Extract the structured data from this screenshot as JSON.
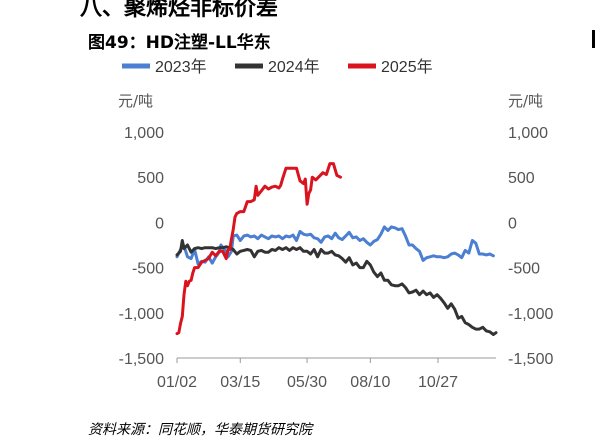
{
  "heading": "八、聚烯烃非标价差",
  "figure_title": "图49：HD注塑-LL华东",
  "source": "资料来源：同花顺，华泰期货研究院",
  "chart_data": {
    "type": "line",
    "title": "图49：HD注塑-LL华东",
    "left_unit": "元/吨",
    "right_unit": "元/吨",
    "ylim": [
      -1500,
      1000
    ],
    "yticks": [
      1000,
      500,
      0,
      -500,
      -1000,
      -1500
    ],
    "ytick_labels": [
      "1,000",
      "500",
      "0",
      "-500",
      "-1,000",
      "-1,500"
    ],
    "xticks": [
      "01/02",
      "03/15",
      "05/30",
      "08/10",
      "10/27"
    ],
    "xtick_positions": [
      2,
      74,
      150,
      222,
      299
    ],
    "xlim": [
      2,
      365
    ],
    "grid": false,
    "legend_position": "top",
    "series": [
      {
        "name": "2023年",
        "color": "#4A7FD1",
        "x": [
          2,
          6,
          10,
          14,
          18,
          22,
          26,
          30,
          34,
          38,
          42,
          46,
          50,
          52,
          56,
          60,
          64,
          66,
          70,
          74,
          78,
          82,
          86,
          90,
          94,
          98,
          102,
          106,
          110,
          114,
          118,
          122,
          126,
          130,
          134,
          138,
          142,
          146,
          150,
          154,
          158,
          162,
          166,
          170,
          174,
          178,
          182,
          186,
          190,
          194,
          198,
          202,
          206,
          210,
          214,
          218,
          222,
          226,
          230,
          234,
          238,
          242,
          246,
          250,
          254,
          258,
          262,
          266,
          270,
          274,
          278,
          282,
          286,
          290,
          294,
          298,
          302,
          306,
          310,
          314,
          318,
          322,
          326,
          330,
          334,
          338,
          342,
          346,
          350,
          354,
          358,
          362
        ],
        "y": [
          -380,
          -300,
          -260,
          -380,
          -400,
          -300,
          -460,
          -430,
          -440,
          -380,
          -450,
          -380,
          -330,
          -250,
          -300,
          -380,
          -320,
          -150,
          -140,
          -200,
          -150,
          -140,
          -160,
          -150,
          -180,
          -140,
          -160,
          -180,
          -150,
          -160,
          -150,
          -180,
          -150,
          -160,
          -140,
          -200,
          -100,
          -130,
          -140,
          -130,
          -170,
          -180,
          -220,
          -160,
          -150,
          -180,
          -120,
          -170,
          -190,
          -150,
          -110,
          -170,
          -160,
          -200,
          -180,
          -220,
          -250,
          -210,
          -190,
          -130,
          -50,
          -90,
          -50,
          -60,
          -80,
          -70,
          -150,
          -250,
          -250,
          -290,
          -320,
          -420,
          -390,
          -380,
          -370,
          -380,
          -380,
          -390,
          -380,
          -350,
          -340,
          -360,
          -390,
          -310,
          -340,
          -200,
          -230,
          -350,
          -350,
          -360,
          -350,
          -370
        ]
      },
      {
        "name": "2024年",
        "color": "#333333",
        "x": [
          2,
          6,
          8,
          10,
          14,
          18,
          22,
          26,
          30,
          34,
          38,
          42,
          46,
          50,
          54,
          58,
          62,
          66,
          70,
          74,
          78,
          82,
          86,
          90,
          94,
          98,
          102,
          106,
          110,
          114,
          118,
          122,
          126,
          130,
          134,
          138,
          142,
          146,
          150,
          154,
          158,
          162,
          166,
          170,
          174,
          178,
          182,
          186,
          190,
          194,
          198,
          202,
          206,
          210,
          214,
          218,
          222,
          226,
          230,
          234,
          238,
          242,
          246,
          250,
          254,
          258,
          262,
          266,
          270,
          274,
          278,
          282,
          286,
          290,
          294,
          298,
          302,
          306,
          310,
          314,
          318,
          322,
          326,
          330,
          334,
          338,
          342,
          346,
          350,
          354,
          358,
          362,
          365
        ],
        "y": [
          -360,
          -320,
          -200,
          -290,
          -250,
          -330,
          -290,
          -280,
          -290,
          -280,
          -280,
          -280,
          -290,
          -280,
          -280,
          -270,
          -280,
          -300,
          -350,
          -320,
          -310,
          -300,
          -310,
          -380,
          -320,
          -310,
          -330,
          -330,
          -300,
          -310,
          -280,
          -300,
          -280,
          -310,
          -280,
          -300,
          -280,
          -320,
          -320,
          -350,
          -300,
          -380,
          -300,
          -340,
          -340,
          -320,
          -360,
          -370,
          -400,
          -440,
          -390,
          -470,
          -450,
          -500,
          -500,
          -430,
          -470,
          -550,
          -600,
          -560,
          -640,
          -640,
          -690,
          -700,
          -700,
          -680,
          -720,
          -780,
          -770,
          -750,
          -800,
          -760,
          -800,
          -780,
          -830,
          -800,
          -840,
          -890,
          -950,
          -900,
          -960,
          -1060,
          -1040,
          -1110,
          -1130,
          -1160,
          -1180,
          -1180,
          -1160,
          -1200,
          -1210,
          -1240,
          -1220
        ]
      },
      {
        "name": "2025年",
        "color": "#D9141E",
        "x": [
          2,
          4,
          6,
          8,
          10,
          12,
          14,
          16,
          18,
          20,
          22,
          26,
          30,
          34,
          38,
          42,
          46,
          50,
          54,
          58,
          60,
          62,
          64,
          66,
          68,
          70,
          74,
          78,
          82,
          86,
          90,
          92,
          94,
          98,
          102,
          106,
          110,
          114,
          118,
          120,
          122,
          126,
          130,
          134,
          138,
          142,
          146,
          148,
          150,
          152,
          154,
          156,
          160,
          164,
          168,
          172,
          176,
          180,
          184,
          188
        ],
        "y": [
          -1230,
          -1220,
          -1120,
          -1040,
          -800,
          -650,
          -700,
          -650,
          -640,
          -560,
          -500,
          -500,
          -440,
          -420,
          -400,
          -330,
          -370,
          -320,
          -320,
          -400,
          -300,
          -300,
          -180,
          -80,
          60,
          100,
          120,
          120,
          230,
          230,
          250,
          400,
          300,
          350,
          400,
          370,
          390,
          400,
          380,
          410,
          480,
          600,
          600,
          600,
          600,
          460,
          430,
          480,
          200,
          320,
          360,
          500,
          470,
          510,
          550,
          530,
          650,
          650,
          520,
          500
        ]
      }
    ]
  }
}
